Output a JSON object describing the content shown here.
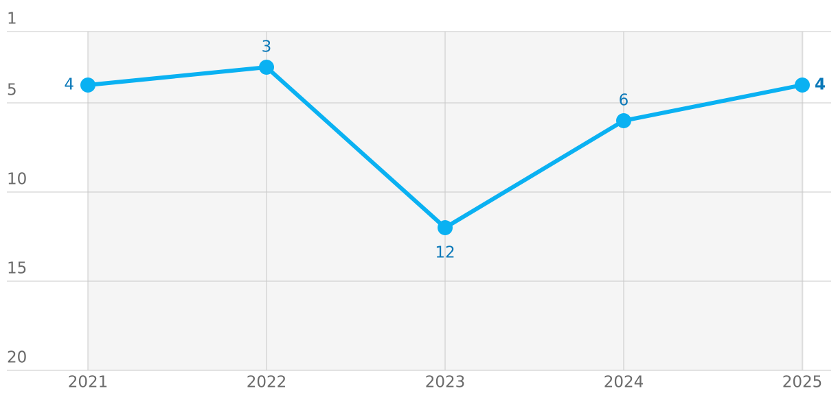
{
  "chart_data": {
    "type": "line",
    "categories": [
      "2021",
      "2022",
      "2023",
      "2024",
      "2025"
    ],
    "values": [
      4,
      3,
      12,
      6,
      4
    ],
    "color": "#0ab1f2",
    "ylim": [
      1,
      20
    ],
    "y_inverted": true,
    "yticks": [
      1,
      5,
      10,
      15,
      20
    ],
    "grid": true
  }
}
